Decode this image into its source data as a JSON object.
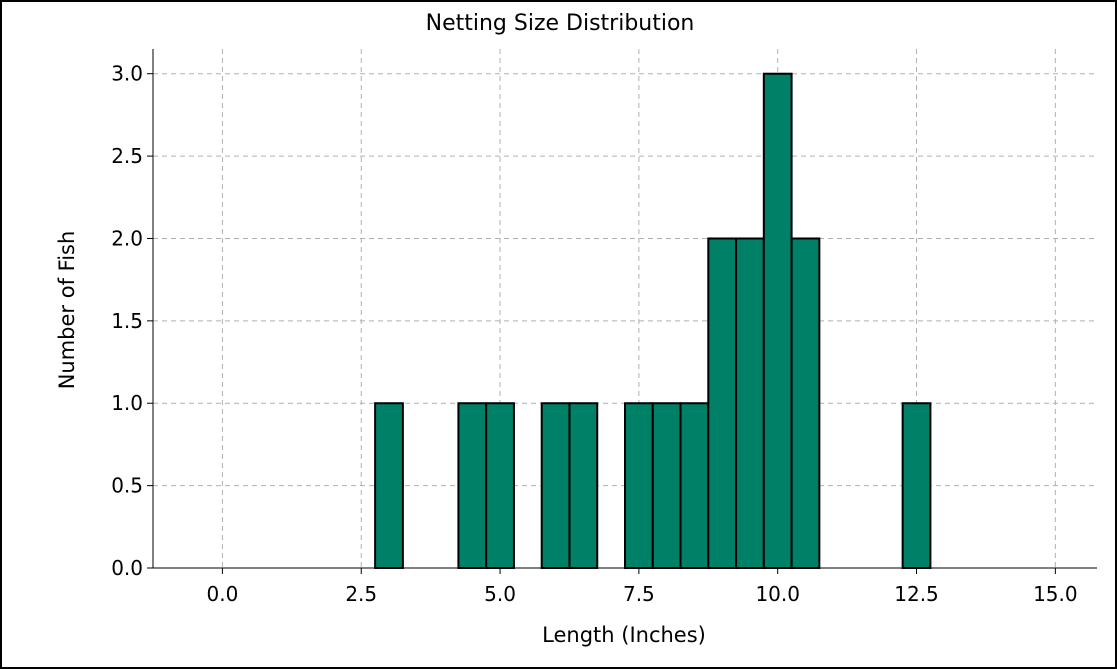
{
  "chart_data": {
    "type": "bar",
    "title": "Netting Size Distribution",
    "xlabel": "Length (Inches)",
    "ylabel": "Number of Fish",
    "xlim": [
      -1.25,
      15.75
    ],
    "ylim": [
      0,
      3.15
    ],
    "xticks": [
      0,
      2.5,
      5,
      7.5,
      10,
      12.5,
      15
    ],
    "xtick_labels": [
      "0.0",
      "2.5",
      "5.0",
      "7.5",
      "10.0",
      "12.5",
      "15.0"
    ],
    "yticks": [
      0,
      0.5,
      1,
      1.5,
      2,
      2.5,
      3
    ],
    "ytick_labels": [
      "0.0",
      "0.5",
      "1.0",
      "1.5",
      "2.0",
      "2.5",
      "3.0"
    ],
    "grid": true,
    "bar_color": "#008066",
    "edge_color": "#000000",
    "bin_width": 0.5,
    "bins": [
      {
        "start": 2.75,
        "end": 3.25,
        "count": 1
      },
      {
        "start": 4.25,
        "end": 4.75,
        "count": 1
      },
      {
        "start": 4.75,
        "end": 5.25,
        "count": 1
      },
      {
        "start": 5.75,
        "end": 6.25,
        "count": 1
      },
      {
        "start": 6.25,
        "end": 6.75,
        "count": 1
      },
      {
        "start": 7.25,
        "end": 7.75,
        "count": 1
      },
      {
        "start": 7.75,
        "end": 8.25,
        "count": 1
      },
      {
        "start": 8.25,
        "end": 8.75,
        "count": 1
      },
      {
        "start": 8.75,
        "end": 9.25,
        "count": 2
      },
      {
        "start": 9.25,
        "end": 9.75,
        "count": 2
      },
      {
        "start": 9.75,
        "end": 10.25,
        "count": 3
      },
      {
        "start": 10.25,
        "end": 10.75,
        "count": 2
      },
      {
        "start": 12.25,
        "end": 12.75,
        "count": 1
      }
    ]
  }
}
